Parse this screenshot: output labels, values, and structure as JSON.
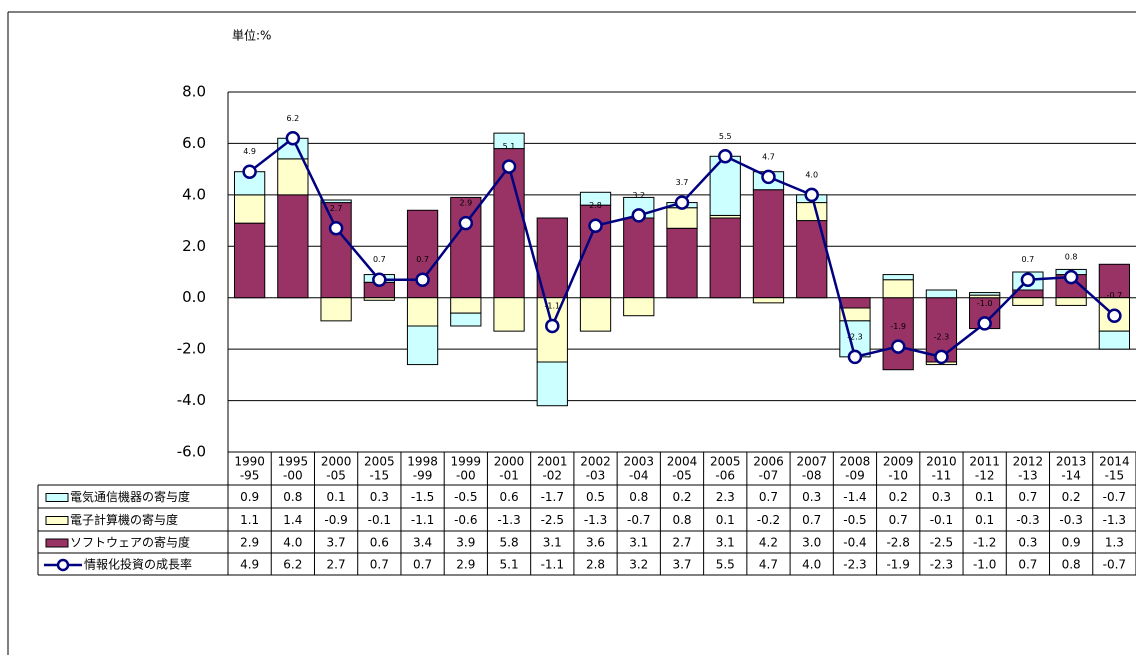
{
  "chart_data": {
    "type": "bar",
    "title": "単位:%",
    "categories": [
      [
        "1990",
        "-95"
      ],
      [
        "1995",
        "-00"
      ],
      [
        "2000",
        "-05"
      ],
      [
        "2005",
        "-15"
      ],
      [
        "1998",
        "-99"
      ],
      [
        "1999",
        "-00"
      ],
      [
        "2000",
        "-01"
      ],
      [
        "2001",
        "-02"
      ],
      [
        "2002",
        "-03"
      ],
      [
        "2003",
        "-04"
      ],
      [
        "2004",
        "-05"
      ],
      [
        "2005",
        "-06"
      ],
      [
        "2006",
        "-07"
      ],
      [
        "2007",
        "-08"
      ],
      [
        "2008",
        "-09"
      ],
      [
        "2009",
        "-10"
      ],
      [
        "2010",
        "-11"
      ],
      [
        "2011",
        "-12"
      ],
      [
        "2012",
        "-13"
      ],
      [
        "2013",
        "-14"
      ],
      [
        "2014",
        "-15"
      ]
    ],
    "series": [
      {
        "name": "電気通信機器の寄与度",
        "color": "#ccffff",
        "type": "bar",
        "values": [
          0.9,
          0.8,
          0.1,
          0.3,
          -1.5,
          -0.5,
          0.6,
          -1.7,
          0.5,
          0.8,
          0.2,
          2.3,
          0.7,
          0.3,
          -1.4,
          0.2,
          0.3,
          0.1,
          0.7,
          0.2,
          -0.7
        ],
        "value_labels": [
          "0.9",
          "0.8",
          "0.1",
          "0.3",
          "-1.5",
          "-0.5",
          "0.6",
          "-1.7",
          "0.5",
          "0.8",
          "0.2",
          "2.3",
          "0.7",
          "0.3",
          "-1.4",
          "0.2",
          "0.3",
          "0.1",
          "0.7",
          "0.2",
          "-0.7"
        ]
      },
      {
        "name": "電子計算機の寄与度",
        "color": "#ffffcc",
        "type": "bar",
        "values": [
          1.1,
          1.4,
          -0.9,
          -0.1,
          -1.1,
          -0.6,
          -1.3,
          -2.5,
          -1.3,
          -0.7,
          0.8,
          0.1,
          -0.2,
          0.7,
          -0.5,
          0.7,
          -0.1,
          0.1,
          -0.3,
          -0.3,
          -1.3
        ],
        "value_labels": [
          "1.1",
          "1.4",
          "-0.9",
          "-0.1",
          "-1.1",
          "-0.6",
          "-1.3",
          "-2.5",
          "-1.3",
          "-0.7",
          "0.8",
          "0.1",
          "-0.2",
          "0.7",
          "-0.5",
          "0.7",
          "-0.1",
          "0.1",
          "-0.3",
          "-0.3",
          "-1.3"
        ]
      },
      {
        "name": "ソフトウェアの寄与度",
        "color": "#993366",
        "type": "bar",
        "values": [
          2.9,
          4.0,
          3.7,
          0.6,
          3.4,
          3.9,
          5.8,
          3.1,
          3.6,
          3.1,
          2.7,
          3.1,
          4.2,
          3.0,
          -0.4,
          -2.8,
          -2.5,
          -1.2,
          0.3,
          0.9,
          1.3
        ],
        "value_labels": [
          "2.9",
          "4.0",
          "3.7",
          "0.6",
          "3.4",
          "3.9",
          "5.8",
          "3.1",
          "3.6",
          "3.1",
          "2.7",
          "3.1",
          "4.2",
          "3.0",
          "-0.4",
          "-2.8",
          "-2.5",
          "-1.2",
          "0.3",
          "0.9",
          "1.3"
        ]
      },
      {
        "name": "情報化投資の成長率",
        "color": "#000080",
        "type": "line",
        "values": [
          4.9,
          6.2,
          2.7,
          0.7,
          0.7,
          2.9,
          5.1,
          -1.1,
          2.8,
          3.2,
          3.7,
          5.5,
          4.7,
          4.0,
          -2.3,
          -1.9,
          -2.3,
          -1.0,
          0.7,
          0.8,
          -0.7
        ],
        "value_labels": [
          "4.9",
          "6.2",
          "2.7",
          "0.7",
          "0.7",
          "2.9",
          "5.1",
          "-1.1",
          "2.8",
          "3.2",
          "3.7",
          "5.5",
          "4.7",
          "4.0",
          "-2.3",
          "-1.9",
          "-2.3",
          "-1.0",
          "0.7",
          "0.8",
          "-0.7"
        ]
      }
    ],
    "ylim": [
      -6,
      8
    ],
    "yticks": [
      {
        "value": -6,
        "label": "-6.0"
      },
      {
        "value": -4,
        "label": "-4.0"
      },
      {
        "value": -2,
        "label": "-2.0"
      },
      {
        "value": 0,
        "label": "0.0"
      },
      {
        "value": 2,
        "label": "2.0"
      },
      {
        "value": 4,
        "label": "4.0"
      },
      {
        "value": 6,
        "label": "6.0"
      },
      {
        "value": 8,
        "label": "8.0"
      }
    ],
    "grid": true
  }
}
